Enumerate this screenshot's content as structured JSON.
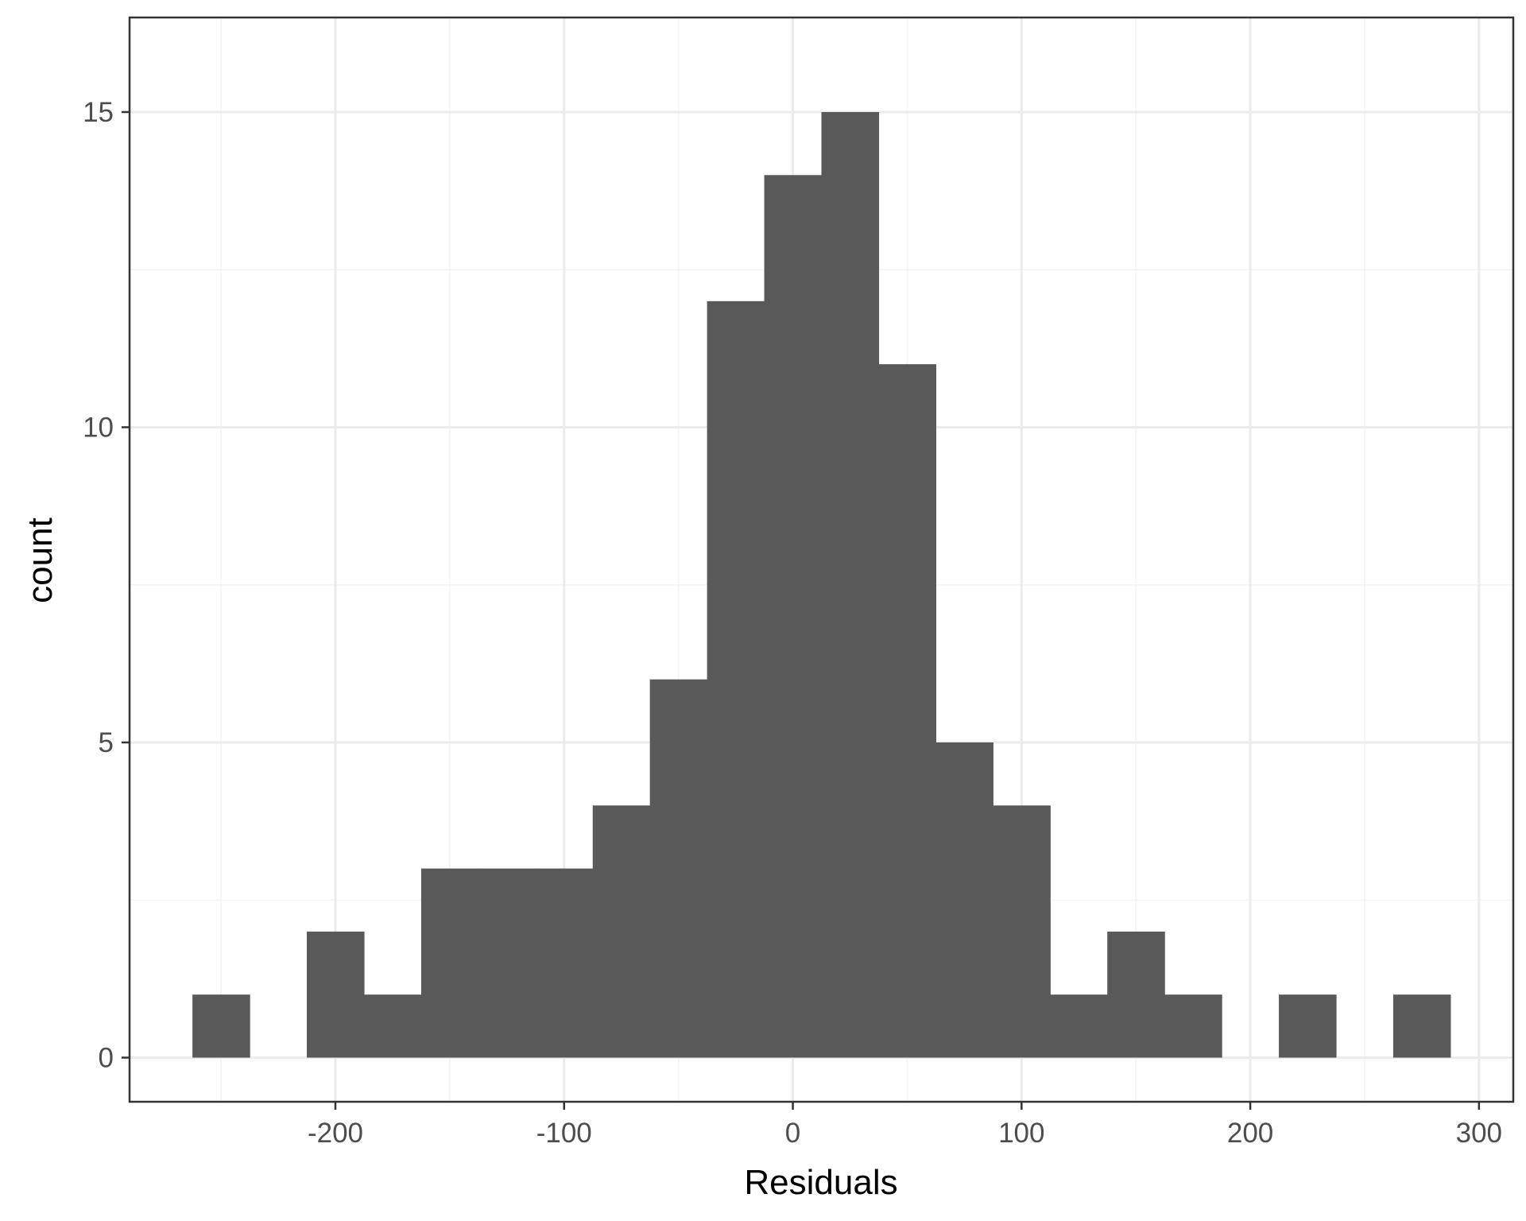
{
  "chart_data": {
    "type": "bar",
    "subtype": "histogram",
    "title": "",
    "xlabel": "Residuals",
    "ylabel": "count",
    "xlim": [
      -290,
      315
    ],
    "ylim": [
      -0.7,
      16.5
    ],
    "x_ticks": [
      -200,
      -100,
      0,
      100,
      200,
      300
    ],
    "x_tick_labels": [
      "-200",
      "-100",
      "0",
      "100",
      "200",
      "300"
    ],
    "x_minor_ticks": [
      -250,
      -150,
      -50,
      50,
      150,
      250
    ],
    "y_ticks": [
      0,
      5,
      10,
      15
    ],
    "y_tick_labels": [
      "0",
      "5",
      "10",
      "15"
    ],
    "y_minor_ticks": [
      2.5,
      7.5,
      12.5
    ],
    "bin_width": 25,
    "bins": [
      {
        "center": -250,
        "count": 1
      },
      {
        "center": -225,
        "count": 0
      },
      {
        "center": -200,
        "count": 2
      },
      {
        "center": -175,
        "count": 1
      },
      {
        "center": -150,
        "count": 3
      },
      {
        "center": -125,
        "count": 3
      },
      {
        "center": -100,
        "count": 3
      },
      {
        "center": -75,
        "count": 4
      },
      {
        "center": -50,
        "count": 6
      },
      {
        "center": -25,
        "count": 12
      },
      {
        "center": 0,
        "count": 14
      },
      {
        "center": 25,
        "count": 15
      },
      {
        "center": 50,
        "count": 11
      },
      {
        "center": 75,
        "count": 5
      },
      {
        "center": 100,
        "count": 4
      },
      {
        "center": 125,
        "count": 1
      },
      {
        "center": 150,
        "count": 2
      },
      {
        "center": 175,
        "count": 1
      },
      {
        "center": 200,
        "count": 0
      },
      {
        "center": 225,
        "count": 1
      },
      {
        "center": 250,
        "count": 0
      },
      {
        "center": 275,
        "count": 1
      }
    ],
    "grid": true,
    "colors": {
      "bar": "#595959",
      "grid_major": "#ebebeb",
      "grid_minor": "#f4f4f4",
      "panel_border": "#333333",
      "tick_label": "#4d4d4d"
    }
  }
}
